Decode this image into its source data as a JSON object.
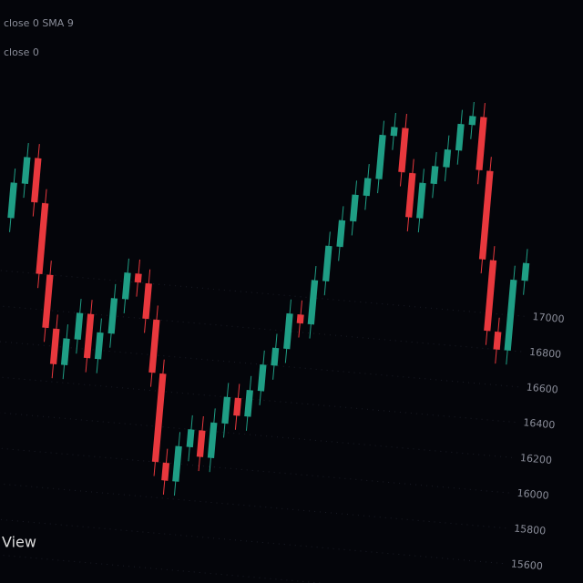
{
  "chart_data": {
    "type": "candlestick",
    "annotations": [
      "close 0 SMA 9",
      "close 0",
      "View"
    ],
    "open": [
      17300,
      17500,
      17650,
      17400,
      17000,
      16700,
      16500,
      16650,
      16800,
      16550,
      16700,
      16900,
      17050,
      17000,
      16800,
      16500,
      16000,
      15900,
      16100,
      16200,
      16050,
      16250,
      16400,
      16300,
      16450,
      16600,
      16700,
      16900,
      16850,
      17100,
      17300,
      17450,
      17600,
      17700,
      17950,
      18000,
      17750,
      17500,
      17700,
      17800,
      17900,
      18050,
      18100,
      17800,
      17300,
      16900,
      16800,
      17200
    ],
    "high": [
      17580,
      17730,
      17730,
      17480,
      17080,
      16780,
      16730,
      16880,
      16880,
      16780,
      16980,
      17130,
      17130,
      17080,
      16880,
      16580,
      16080,
      16180,
      16280,
      16280,
      16330,
      16480,
      16480,
      16530,
      16680,
      16780,
      16980,
      16980,
      17180,
      17380,
      17530,
      17680,
      17780,
      18030,
      18080,
      18080,
      17830,
      17780,
      17880,
      17980,
      18130,
      18180,
      18180,
      17880,
      17380,
      16980,
      17280,
      17380
    ],
    "low": [
      17220,
      17420,
      17320,
      16920,
      16620,
      16420,
      16420,
      16570,
      16470,
      16470,
      16620,
      16820,
      16920,
      16720,
      16420,
      15920,
      15820,
      15820,
      16020,
      15970,
      15970,
      16170,
      16220,
      16220,
      16370,
      16520,
      16620,
      16770,
      16770,
      17020,
      17220,
      17370,
      17520,
      17620,
      17870,
      17670,
      17420,
      17420,
      17620,
      17720,
      17820,
      17970,
      17720,
      17220,
      16820,
      16720,
      16720,
      17120
    ],
    "close": [
      17500,
      17650,
      17400,
      17000,
      16700,
      16500,
      16650,
      16800,
      16550,
      16700,
      16900,
      17050,
      17000,
      16800,
      16500,
      16000,
      15900,
      16100,
      16200,
      16050,
      16250,
      16400,
      16300,
      16450,
      16600,
      16700,
      16900,
      16850,
      17100,
      17300,
      17450,
      17600,
      17700,
      17950,
      18000,
      17750,
      17500,
      17700,
      17800,
      17900,
      18050,
      18100,
      17800,
      17300,
      16900,
      16800,
      17200,
      17300
    ],
    "up_color": "#1f9e85",
    "down_color": "#e8383d",
    "ylim": [
      15380,
      18670
    ],
    "yticks": [
      15400,
      15600,
      15800,
      16000,
      16200,
      16400,
      16600,
      16800,
      17000
    ],
    "grid": true
  }
}
